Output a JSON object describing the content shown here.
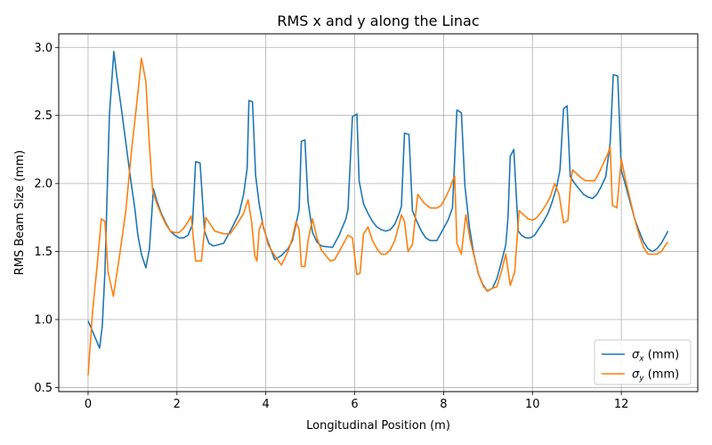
{
  "chart_data": {
    "type": "line",
    "title": "RMS x and y along the Linac",
    "xlabel": "Longitudinal Position (m)",
    "ylabel": "RMS Beam Size (mm)",
    "xlim": [
      -0.66,
      13.72
    ],
    "ylim": [
      0.47,
      3.1
    ],
    "xticks": [
      0,
      2,
      4,
      6,
      8,
      10,
      12
    ],
    "yticks": [
      0.5,
      1.0,
      1.5,
      2.0,
      2.5,
      3.0
    ],
    "xtick_labels": [
      "0",
      "2",
      "4",
      "6",
      "8",
      "10",
      "12"
    ],
    "ytick_labels": [
      "0.5",
      "1.0",
      "1.5",
      "2.0",
      "2.5",
      "3.0"
    ],
    "grid": true,
    "legend_position": "lower-right",
    "series": [
      {
        "name": "σx (mm)",
        "label_base": "σ",
        "label_sub": "x",
        "label_unit": " (mm)",
        "color": "#1f77b4",
        "x": [
          0.0,
          0.26,
          0.32,
          0.38,
          0.48,
          0.58,
          0.65,
          0.75,
          0.85,
          0.95,
          1.05,
          1.12,
          1.2,
          1.3,
          1.38,
          1.47,
          1.55,
          1.65,
          1.75,
          1.85,
          1.95,
          2.05,
          2.15,
          2.25,
          2.35,
          2.42,
          2.52,
          2.62,
          2.72,
          2.82,
          3.05,
          3.25,
          3.4,
          3.5,
          3.58,
          3.62,
          3.7,
          3.77,
          3.85,
          3.95,
          4.05,
          4.2,
          4.35,
          4.5,
          4.6,
          4.68,
          4.75,
          4.8,
          4.88,
          4.95,
          5.05,
          5.15,
          5.25,
          5.5,
          5.65,
          5.8,
          5.85,
          5.95,
          6.05,
          6.1,
          6.2,
          6.3,
          6.4,
          6.5,
          6.6,
          6.7,
          6.8,
          6.9,
          7.0,
          7.05,
          7.12,
          7.22,
          7.3,
          7.4,
          7.5,
          7.6,
          7.7,
          7.85,
          8.0,
          8.1,
          8.2,
          8.3,
          8.4,
          8.48,
          8.58,
          8.68,
          8.78,
          8.88,
          8.98,
          9.1,
          9.2,
          9.3,
          9.4,
          9.45,
          9.5,
          9.58,
          9.68,
          9.75,
          9.85,
          9.95,
          10.05,
          10.15,
          10.25,
          10.35,
          10.45,
          10.55,
          10.62,
          10.7,
          10.78,
          10.85,
          10.95,
          11.05,
          11.15,
          11.25,
          11.35,
          11.45,
          11.55,
          11.65,
          11.75,
          11.82,
          11.92,
          12.0,
          12.1,
          12.2,
          12.3,
          12.4,
          12.5,
          12.6,
          12.7,
          12.8,
          12.9,
          13.05
        ],
        "y": [
          0.99,
          0.79,
          0.95,
          1.35,
          2.5,
          2.97,
          2.78,
          2.55,
          2.3,
          2.05,
          1.82,
          1.62,
          1.48,
          1.38,
          1.52,
          1.96,
          1.87,
          1.78,
          1.71,
          1.65,
          1.62,
          1.6,
          1.6,
          1.62,
          1.7,
          2.16,
          2.15,
          1.65,
          1.56,
          1.54,
          1.56,
          1.68,
          1.78,
          1.92,
          2.11,
          2.61,
          2.6,
          2.06,
          1.85,
          1.67,
          1.57,
          1.44,
          1.47,
          1.52,
          1.58,
          1.7,
          1.81,
          2.31,
          2.32,
          1.87,
          1.64,
          1.57,
          1.54,
          1.53,
          1.62,
          1.74,
          1.81,
          2.49,
          2.51,
          2.02,
          1.85,
          1.78,
          1.72,
          1.68,
          1.66,
          1.65,
          1.66,
          1.7,
          1.78,
          1.83,
          2.37,
          2.36,
          1.8,
          1.72,
          1.65,
          1.6,
          1.58,
          1.58,
          1.67,
          1.73,
          1.82,
          2.54,
          2.52,
          1.98,
          1.68,
          1.48,
          1.34,
          1.26,
          1.21,
          1.23,
          1.3,
          1.42,
          1.55,
          1.75,
          2.2,
          2.25,
          1.65,
          1.62,
          1.6,
          1.6,
          1.62,
          1.67,
          1.72,
          1.78,
          1.87,
          1.98,
          2.1,
          2.55,
          2.57,
          2.05,
          2.0,
          1.96,
          1.92,
          1.9,
          1.89,
          1.92,
          1.98,
          2.05,
          2.3,
          2.8,
          2.79,
          2.1,
          1.98,
          1.86,
          1.74,
          1.65,
          1.57,
          1.52,
          1.5,
          1.52,
          1.56,
          1.65
        ],
        "xlabel": ""
      },
      {
        "name": "σy (mm)",
        "label_base": "σ",
        "label_sub": "y",
        "label_unit": " (mm)",
        "color": "#ff7f0e",
        "x": [
          0.0,
          0.1,
          0.2,
          0.3,
          0.38,
          0.45,
          0.57,
          0.7,
          0.85,
          0.98,
          1.1,
          1.2,
          1.3,
          1.38,
          1.45,
          1.55,
          1.65,
          1.75,
          1.85,
          1.95,
          2.05,
          2.15,
          2.25,
          2.32,
          2.42,
          2.55,
          2.65,
          2.75,
          2.85,
          3.05,
          3.2,
          3.35,
          3.5,
          3.6,
          3.68,
          3.75,
          3.8,
          3.85,
          3.92,
          4.05,
          4.2,
          4.35,
          4.5,
          4.6,
          4.68,
          4.75,
          4.8,
          4.88,
          4.95,
          5.05,
          5.15,
          5.25,
          5.35,
          5.45,
          5.55,
          5.65,
          5.75,
          5.85,
          5.95,
          6.05,
          6.12,
          6.2,
          6.3,
          6.4,
          6.5,
          6.6,
          6.7,
          6.8,
          6.9,
          7.0,
          7.05,
          7.12,
          7.2,
          7.3,
          7.42,
          7.55,
          7.7,
          7.85,
          7.95,
          8.05,
          8.15,
          8.2,
          8.25,
          8.3,
          8.4,
          8.5,
          8.6,
          8.7,
          8.8,
          8.9,
          9.0,
          9.1,
          9.2,
          9.3,
          9.4,
          9.5,
          9.6,
          9.7,
          9.8,
          9.9,
          10.0,
          10.1,
          10.2,
          10.3,
          10.4,
          10.5,
          10.6,
          10.7,
          10.8,
          10.85,
          10.9,
          11.0,
          11.1,
          11.2,
          11.3,
          11.4,
          11.5,
          11.6,
          11.7,
          11.75,
          11.8,
          11.9,
          12.0,
          12.1,
          12.2,
          12.3,
          12.4,
          12.5,
          12.6,
          12.7,
          12.8,
          12.9,
          13.0,
          13.05
        ],
        "y": [
          0.59,
          1.05,
          1.38,
          1.74,
          1.72,
          1.35,
          1.17,
          1.45,
          1.8,
          2.25,
          2.6,
          2.92,
          2.75,
          2.28,
          1.95,
          1.85,
          1.77,
          1.7,
          1.65,
          1.64,
          1.64,
          1.67,
          1.72,
          1.76,
          1.43,
          1.43,
          1.75,
          1.7,
          1.65,
          1.63,
          1.63,
          1.7,
          1.78,
          1.88,
          1.72,
          1.47,
          1.43,
          1.66,
          1.72,
          1.55,
          1.47,
          1.4,
          1.5,
          1.6,
          1.72,
          1.66,
          1.39,
          1.39,
          1.58,
          1.74,
          1.6,
          1.51,
          1.47,
          1.43,
          1.44,
          1.5,
          1.56,
          1.62,
          1.6,
          1.33,
          1.34,
          1.63,
          1.68,
          1.58,
          1.52,
          1.48,
          1.48,
          1.51,
          1.58,
          1.7,
          1.77,
          1.72,
          1.5,
          1.55,
          1.92,
          1.86,
          1.82,
          1.82,
          1.84,
          1.9,
          1.97,
          2.02,
          2.05,
          1.56,
          1.48,
          1.77,
          1.58,
          1.45,
          1.32,
          1.24,
          1.21,
          1.23,
          1.24,
          1.35,
          1.48,
          1.25,
          1.35,
          1.8,
          1.77,
          1.74,
          1.73,
          1.75,
          1.79,
          1.84,
          1.9,
          2.0,
          1.92,
          1.71,
          1.73,
          1.97,
          2.1,
          2.07,
          2.04,
          2.02,
          2.02,
          2.02,
          2.08,
          2.15,
          2.22,
          2.27,
          1.84,
          1.82,
          2.18,
          2.02,
          1.88,
          1.74,
          1.62,
          1.53,
          1.48,
          1.48,
          1.48,
          1.5,
          1.55,
          1.57
        ]
      }
    ]
  }
}
